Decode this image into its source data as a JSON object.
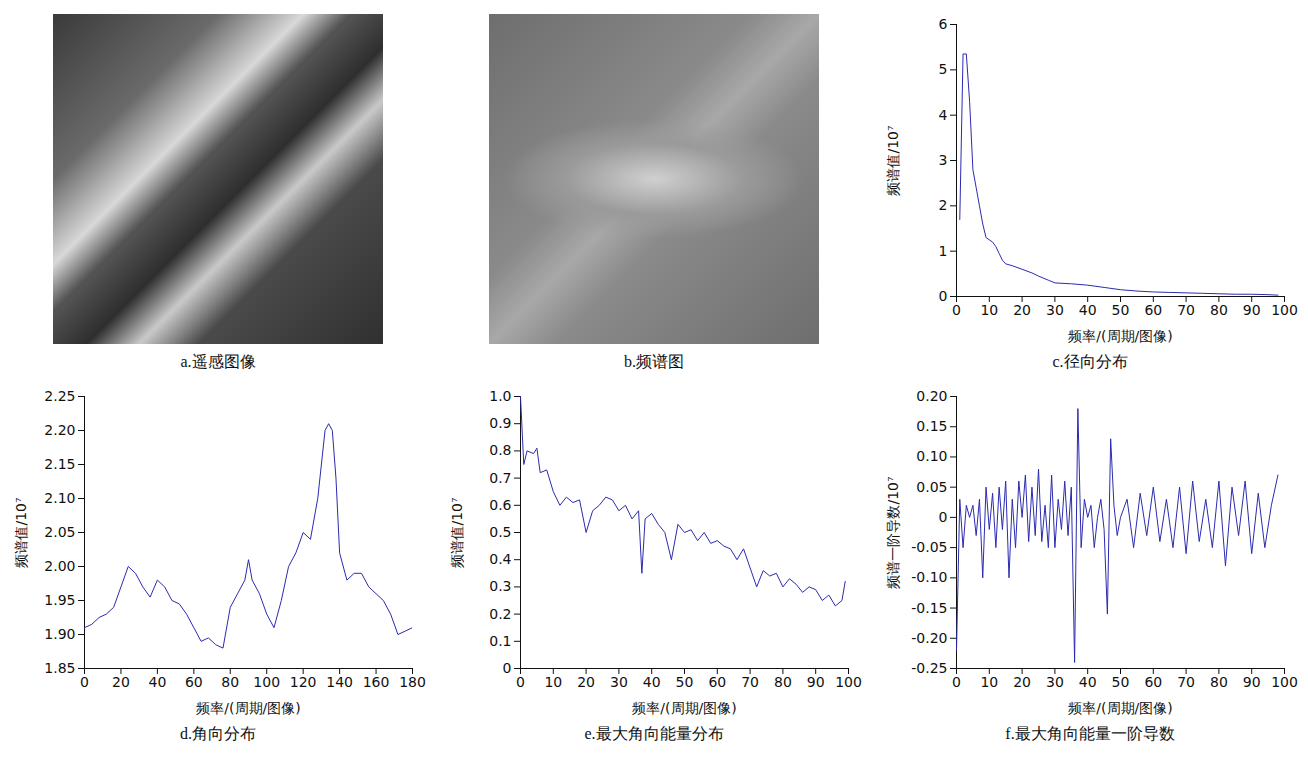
{
  "chart_data": [
    {
      "type": "image",
      "caption": "a.遥感图像"
    },
    {
      "type": "image",
      "caption": "b.频谱图"
    },
    {
      "type": "line",
      "caption": "c.径向分布",
      "xlabel": "频率/(周期/图像)",
      "ylabel": "频谱值/10⁷",
      "color": "#2b2bb0",
      "xlim": [
        0,
        100
      ],
      "xticks": [
        0,
        10,
        20,
        30,
        40,
        50,
        60,
        70,
        80,
        90,
        100
      ],
      "ylim": [
        0,
        6
      ],
      "yticks": [
        0,
        1,
        2,
        3,
        4,
        5,
        6
      ],
      "x": [
        1,
        2,
        3,
        4,
        5,
        6,
        7,
        8,
        9,
        10,
        11,
        12,
        13,
        14,
        15,
        17,
        20,
        23,
        25,
        28,
        30,
        35,
        40,
        45,
        50,
        55,
        60,
        65,
        70,
        75,
        80,
        85,
        90,
        95,
        98
      ],
      "values": [
        1.7,
        5.35,
        5.35,
        4.3,
        2.8,
        2.4,
        2.0,
        1.6,
        1.3,
        1.25,
        1.2,
        1.1,
        0.95,
        0.8,
        0.72,
        0.68,
        0.6,
        0.52,
        0.45,
        0.36,
        0.3,
        0.28,
        0.25,
        0.2,
        0.15,
        0.12,
        0.1,
        0.09,
        0.08,
        0.07,
        0.06,
        0.05,
        0.05,
        0.04,
        0.03
      ]
    },
    {
      "type": "line",
      "caption": "d.角向分布",
      "xlabel": "频率/(周期/图像)",
      "ylabel": "频谱值/10⁷",
      "color": "#2b2bb0",
      "xlim": [
        0,
        180
      ],
      "xticks": [
        0,
        20,
        40,
        60,
        80,
        100,
        120,
        140,
        160,
        180
      ],
      "ylim": [
        1.85,
        2.25
      ],
      "yticks": [
        1.85,
        {
          "value": 1.9,
          "label": "1.90"
        },
        1.95,
        {
          "value": 2,
          "label": "2.00"
        },
        2.05,
        {
          "value": 2.1,
          "label": "2.10"
        },
        2.15,
        {
          "value": 2.2,
          "label": "2.20"
        },
        2.25
      ],
      "x": [
        0,
        4,
        8,
        12,
        16,
        20,
        24,
        28,
        32,
        36,
        40,
        44,
        48,
        52,
        56,
        60,
        64,
        68,
        72,
        76,
        80,
        84,
        88,
        90,
        92,
        96,
        100,
        104,
        108,
        112,
        116,
        120,
        124,
        128,
        132,
        134,
        136,
        138,
        140,
        144,
        148,
        152,
        156,
        160,
        164,
        168,
        172,
        176,
        180
      ],
      "values": [
        1.91,
        1.915,
        1.925,
        1.93,
        1.94,
        1.97,
        2.0,
        1.99,
        1.97,
        1.955,
        1.98,
        1.97,
        1.95,
        1.945,
        1.93,
        1.91,
        1.89,
        1.895,
        1.885,
        1.88,
        1.94,
        1.96,
        1.98,
        2.01,
        1.98,
        1.96,
        1.93,
        1.91,
        1.95,
        2.0,
        2.02,
        2.05,
        2.04,
        2.1,
        2.2,
        2.21,
        2.2,
        2.13,
        2.02,
        1.98,
        1.99,
        1.99,
        1.97,
        1.96,
        1.95,
        1.93,
        1.9,
        1.905,
        1.91
      ]
    },
    {
      "type": "line",
      "caption": "e.最大角向能量分布",
      "xlabel": "频率/(周期/图像)",
      "ylabel": "频谱值/10⁷",
      "color": "#2b2bb0",
      "xlim": [
        0,
        100
      ],
      "xticks": [
        0,
        10,
        20,
        30,
        40,
        50,
        60,
        70,
        80,
        90,
        100
      ],
      "ylim": [
        0,
        1
      ],
      "yticks": [
        0,
        0.1,
        0.2,
        0.3,
        0.4,
        0.5,
        0.6,
        0.7,
        0.8,
        0.9,
        {
          "value": 1,
          "label": "1.0"
        }
      ],
      "x": [
        0,
        1,
        2,
        4,
        5,
        6,
        8,
        10,
        12,
        14,
        16,
        18,
        20,
        22,
        24,
        26,
        28,
        30,
        32,
        34,
        36,
        37,
        38,
        40,
        42,
        44,
        46,
        48,
        50,
        52,
        54,
        56,
        58,
        60,
        62,
        64,
        66,
        68,
        70,
        72,
        74,
        76,
        78,
        80,
        82,
        84,
        86,
        88,
        90,
        92,
        94,
        96,
        98,
        99
      ],
      "values": [
        1.0,
        0.75,
        0.8,
        0.79,
        0.81,
        0.72,
        0.73,
        0.65,
        0.6,
        0.63,
        0.61,
        0.62,
        0.5,
        0.58,
        0.6,
        0.63,
        0.62,
        0.58,
        0.6,
        0.55,
        0.58,
        0.35,
        0.55,
        0.57,
        0.53,
        0.5,
        0.4,
        0.53,
        0.5,
        0.51,
        0.47,
        0.5,
        0.46,
        0.47,
        0.45,
        0.44,
        0.4,
        0.44,
        0.37,
        0.3,
        0.36,
        0.34,
        0.35,
        0.3,
        0.33,
        0.31,
        0.28,
        0.3,
        0.29,
        0.25,
        0.27,
        0.23,
        0.25,
        0.32
      ]
    },
    {
      "type": "line",
      "caption": "f.最大角向能量一阶导数",
      "xlabel": "频率/(周期/图像)",
      "ylabel": "频谱一阶导数/10⁷",
      "color": "#2b2bb0",
      "xlim": [
        0,
        100
      ],
      "xticks": [
        0,
        10,
        20,
        30,
        40,
        50,
        60,
        70,
        80,
        90,
        100
      ],
      "ylim": [
        -0.25,
        0.2
      ],
      "yticks": [
        -0.25,
        {
          "value": -0.2,
          "label": "-0.20"
        },
        -0.15,
        {
          "value": -0.1,
          "label": "-0.10"
        },
        -0.05,
        0,
        0.05,
        {
          "value": 0.1,
          "label": "0.10"
        },
        0.15,
        {
          "value": 0.2,
          "label": "0.20"
        }
      ],
      "x": [
        0,
        1,
        2,
        3,
        4,
        5,
        6,
        7,
        8,
        9,
        10,
        11,
        12,
        13,
        14,
        15,
        16,
        17,
        18,
        19,
        20,
        21,
        22,
        23,
        24,
        25,
        26,
        27,
        28,
        29,
        30,
        31,
        32,
        33,
        34,
        35,
        36,
        37,
        38,
        39,
        40,
        41,
        42,
        43,
        44,
        45,
        46,
        47,
        48,
        49,
        50,
        52,
        54,
        56,
        58,
        60,
        62,
        64,
        66,
        68,
        70,
        72,
        74,
        76,
        78,
        80,
        82,
        84,
        86,
        88,
        90,
        92,
        94,
        96,
        98
      ],
      "values": [
        -0.22,
        0.03,
        -0.05,
        0.02,
        0.0,
        0.02,
        -0.03,
        0.03,
        -0.1,
        0.05,
        -0.02,
        0.04,
        -0.05,
        0.05,
        -0.02,
        0.06,
        -0.1,
        0.03,
        -0.05,
        0.06,
        0.0,
        0.07,
        -0.04,
        0.05,
        -0.03,
        0.08,
        -0.04,
        0.02,
        -0.05,
        0.07,
        -0.05,
        0.03,
        -0.02,
        0.06,
        -0.03,
        0.05,
        -0.24,
        0.18,
        -0.05,
        0.03,
        0.0,
        0.02,
        -0.05,
        0.0,
        0.03,
        -0.02,
        -0.16,
        0.13,
        0.02,
        -0.03,
        0.0,
        0.03,
        -0.05,
        0.04,
        -0.03,
        0.05,
        -0.04,
        0.03,
        -0.05,
        0.05,
        -0.06,
        0.06,
        -0.04,
        0.03,
        -0.05,
        0.06,
        -0.08,
        0.05,
        -0.03,
        0.06,
        -0.06,
        0.04,
        -0.05,
        0.02,
        0.07
      ]
    }
  ]
}
